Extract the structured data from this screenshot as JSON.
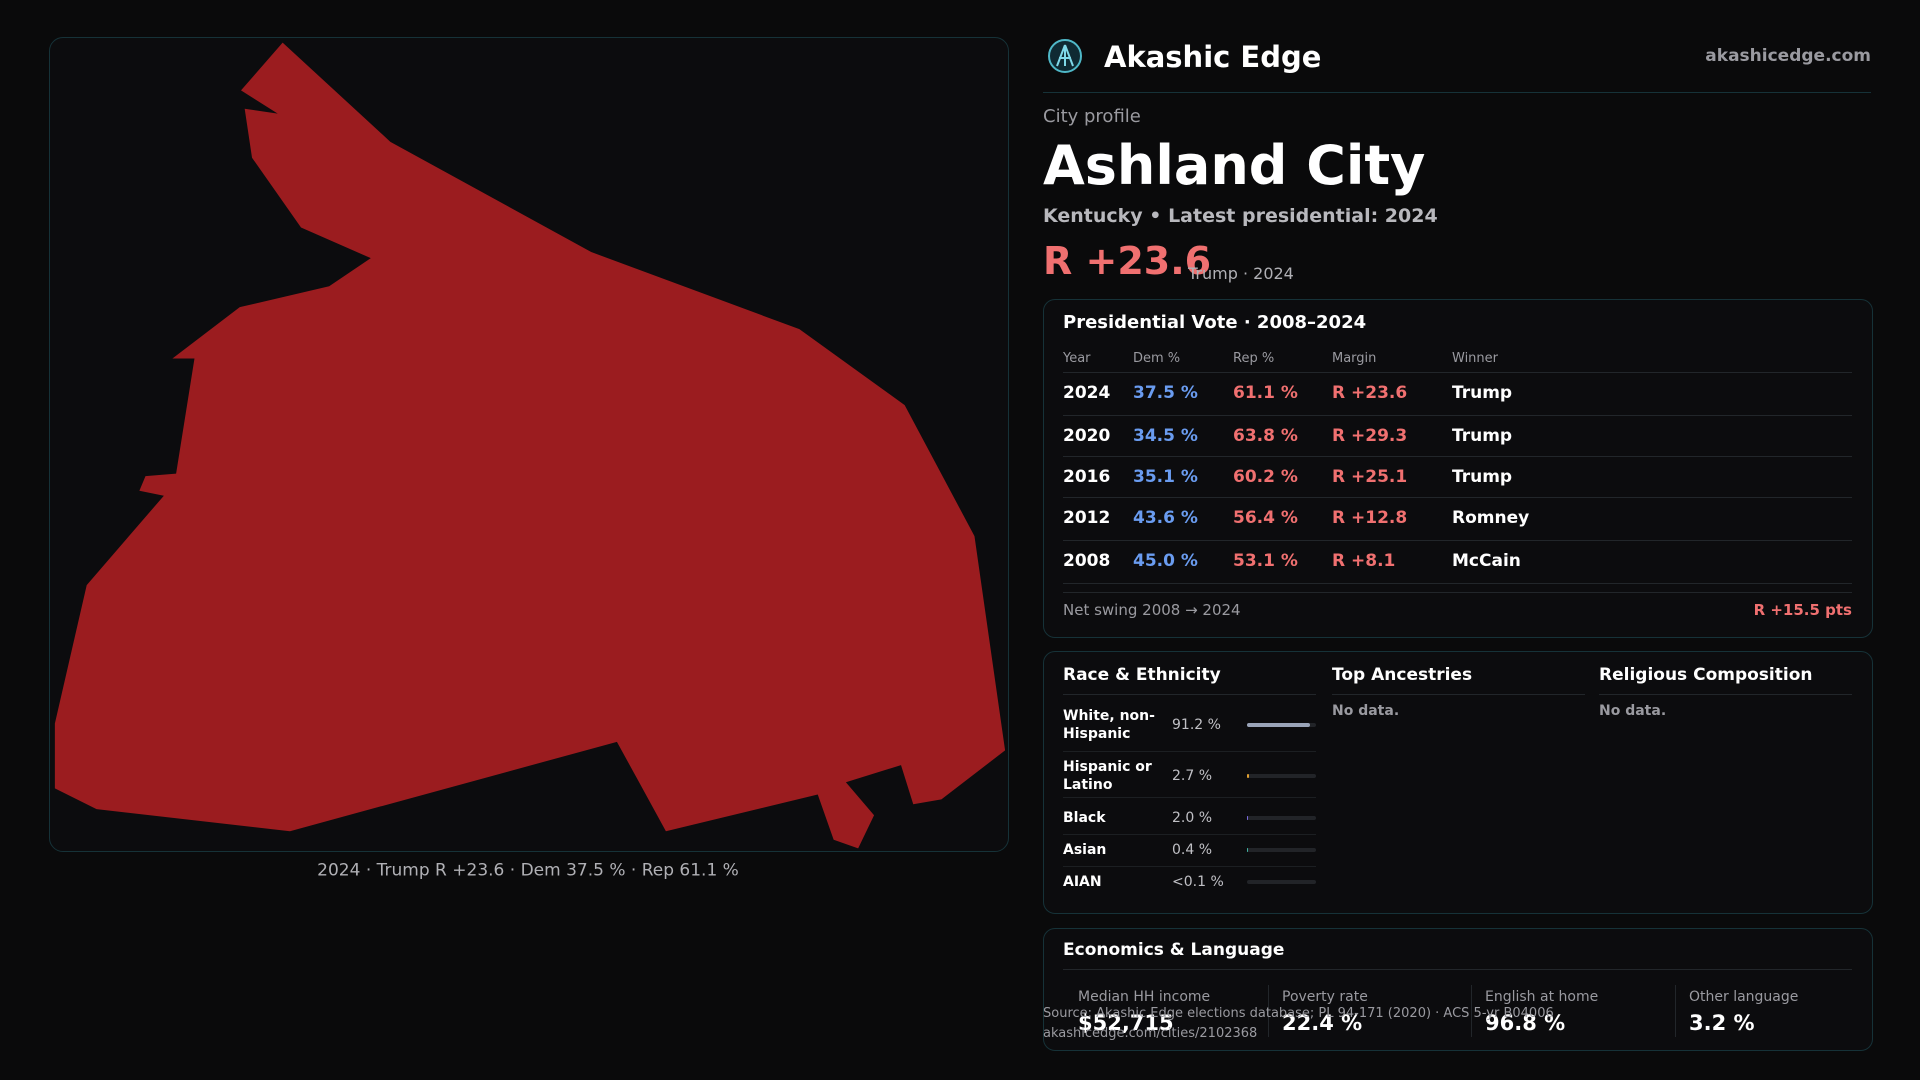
{
  "header": {
    "brand": "Akashic Edge",
    "site": "akashicedge.com"
  },
  "profile": {
    "kicker": "City profile",
    "name": "Ashland City",
    "subtitle": "Kentucky • Latest presidential: 2024",
    "margin": "R +23.6",
    "margin_note": "Trump · 2024"
  },
  "map": {
    "caption": "2024 · Trump R +23.6 · Dem 37.5 % · Rep 61.1 %"
  },
  "vote": {
    "title": "Presidential Vote · 2008–2024",
    "columns": [
      "Year",
      "Dem %",
      "Rep %",
      "Margin",
      "Winner"
    ],
    "rows": [
      [
        "2024",
        "37.5 %",
        "61.1 %",
        "R +23.6",
        "Trump"
      ],
      [
        "2020",
        "34.5 %",
        "63.8 %",
        "R +29.3",
        "Trump"
      ],
      [
        "2016",
        "35.1 %",
        "60.2 %",
        "R +25.1",
        "Trump"
      ],
      [
        "2012",
        "43.6 %",
        "56.4 %",
        "R +12.8",
        "Romney"
      ],
      [
        "2008",
        "45.0 %",
        "53.1 %",
        "R +8.1",
        "McCain"
      ]
    ],
    "swing_label": "Net swing 2008 → 2024",
    "swing_value": "R +15.5 pts"
  },
  "race": {
    "title": "Race & Ethnicity",
    "rows": [
      {
        "label": "White, non-Hispanic",
        "value": 91.2,
        "value_label": "91.2 %",
        "color": "#9aa4b8"
      },
      {
        "label": "Hispanic or Latino",
        "value": 2.7,
        "value_label": "2.7 %",
        "color": "#e0a030"
      },
      {
        "label": "Black",
        "value": 2.0,
        "value_label": "2.0 %",
        "color": "#7a6ae0"
      },
      {
        "label": "Asian",
        "value": 0.4,
        "value_label": "0.4 %",
        "color": "#40b0a0"
      },
      {
        "label": "AIAN",
        "value": 0.1,
        "value_label": "<0.1 %",
        "color": "#c06080"
      }
    ]
  },
  "ancestries": {
    "title": "Top Ancestries",
    "text": "No data."
  },
  "religion": {
    "title": "Religious Composition",
    "text": "No data."
  },
  "econ": {
    "title": "Economics & Language",
    "items": [
      {
        "label": "Median HH income",
        "value": "$52,715"
      },
      {
        "label": "Poverty rate",
        "value": "22.4 %"
      },
      {
        "label": "English at home",
        "value": "96.8 %"
      },
      {
        "label": "Other language",
        "value": "3.2 %"
      }
    ]
  },
  "footer": {
    "source": "Source: Akashic Edge elections database; PL 94-171 (2020) · ACS 5-yr B04006",
    "url": "akashicedge.com/cities/2102368"
  }
}
